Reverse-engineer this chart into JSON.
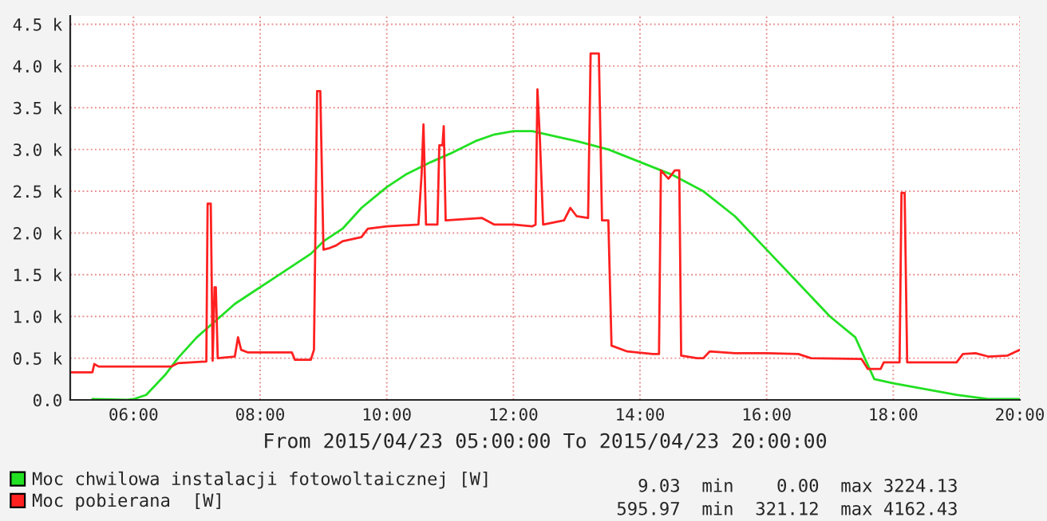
{
  "chart_data": {
    "type": "line",
    "xlabel": "From 2015/04/23 05:00:00 To 2015/04/23 20:00:00",
    "xlim": [
      5,
      20
    ],
    "xticks": [
      {
        "value": 6,
        "label": "06:00"
      },
      {
        "value": 8,
        "label": "08:00"
      },
      {
        "value": 10,
        "label": "10:00"
      },
      {
        "value": 12,
        "label": "12:00"
      },
      {
        "value": 14,
        "label": "14:00"
      },
      {
        "value": 16,
        "label": "16:00"
      },
      {
        "value": 18,
        "label": "18:00"
      },
      {
        "value": 20,
        "label": "20:00"
      }
    ],
    "ylim": [
      0,
      4600
    ],
    "yticks": [
      {
        "value": 0,
        "label": "0.0"
      },
      {
        "value": 500,
        "label": "0.5 k"
      },
      {
        "value": 1000,
        "label": "1.0 k"
      },
      {
        "value": 1500,
        "label": "1.5 k"
      },
      {
        "value": 2000,
        "label": "2.0 k"
      },
      {
        "value": 2500,
        "label": "2.5 k"
      },
      {
        "value": 3000,
        "label": "3.0 k"
      },
      {
        "value": 3500,
        "label": "3.5 k"
      },
      {
        "value": 4000,
        "label": "4.0 k"
      },
      {
        "value": 4500,
        "label": "4.5 k"
      }
    ],
    "grid": true,
    "legend": "bottom",
    "series": [
      {
        "name": "Moc chwilowa instalacji fotowoltaicznej [W]",
        "color": "#22e022",
        "x": [
          5.35,
          5.9,
          6.0,
          6.2,
          6.5,
          6.7,
          7.0,
          7.3,
          7.6,
          7.9,
          8.2,
          8.5,
          8.8,
          9.0,
          9.3,
          9.6,
          10.0,
          10.3,
          10.7,
          11.0,
          11.4,
          11.7,
          12.0,
          12.3,
          12.7,
          13.0,
          13.5,
          14.0,
          14.5,
          15.0,
          15.5,
          16.0,
          16.5,
          17.0,
          17.4,
          17.55,
          17.7,
          18.0,
          18.5,
          19.0,
          19.5,
          20.0
        ],
        "values": [
          10,
          0,
          10,
          60,
          300,
          500,
          750,
          950,
          1150,
          1300,
          1450,
          1600,
          1750,
          1900,
          2050,
          2300,
          2550,
          2700,
          2850,
          2950,
          3100,
          3180,
          3220,
          3220,
          3150,
          3100,
          3000,
          2850,
          2700,
          2500,
          2200,
          1800,
          1400,
          1000,
          750,
          500,
          250,
          200,
          130,
          60,
          10,
          10
        ]
      },
      {
        "name": "Moc pobierana  [W]",
        "color": "#ff2020",
        "x": [
          5.0,
          5.35,
          5.38,
          5.45,
          6.6,
          6.7,
          7.15,
          7.17,
          7.22,
          7.25,
          7.28,
          7.3,
          7.33,
          7.6,
          7.65,
          7.7,
          7.8,
          8.5,
          8.55,
          8.8,
          8.85,
          8.9,
          8.95,
          9.0,
          9.1,
          9.2,
          9.3,
          9.6,
          9.7,
          10.0,
          10.5,
          10.55,
          10.58,
          10.62,
          10.8,
          10.83,
          10.88,
          10.9,
          10.93,
          11.5,
          11.7,
          12.0,
          12.3,
          12.35,
          12.38,
          12.42,
          12.47,
          12.8,
          12.9,
          13.0,
          13.18,
          13.22,
          13.35,
          13.4,
          13.5,
          13.55,
          13.8,
          14.2,
          14.3,
          14.33,
          14.45,
          14.55,
          14.62,
          14.65,
          14.9,
          15.0,
          15.1,
          15.5,
          16.0,
          16.5,
          16.7,
          17.5,
          17.6,
          17.8,
          17.85,
          18.1,
          18.13,
          18.18,
          18.22,
          19.0,
          19.1,
          19.3,
          19.5,
          19.8,
          20.0
        ],
        "values": [
          330,
          330,
          430,
          400,
          400,
          440,
          460,
          2350,
          2350,
          470,
          1350,
          1350,
          500,
          520,
          750,
          600,
          570,
          570,
          480,
          480,
          600,
          3700,
          3700,
          1800,
          1820,
          1850,
          1900,
          1950,
          2050,
          2080,
          2100,
          2700,
          3300,
          2100,
          2100,
          3050,
          3050,
          3280,
          2150,
          2180,
          2100,
          2100,
          2080,
          2100,
          3720,
          3100,
          2100,
          2150,
          2300,
          2200,
          2180,
          4150,
          4150,
          2150,
          2150,
          650,
          580,
          550,
          550,
          2750,
          2650,
          2750,
          2750,
          530,
          500,
          500,
          580,
          560,
          560,
          550,
          500,
          490,
          370,
          370,
          450,
          450,
          2480,
          2480,
          450,
          450,
          550,
          560,
          520,
          530,
          600
        ]
      }
    ],
    "annotations": [
      "9.03  min    0.00  max 3224.13",
      "595.97  min  321.12  max 4162.43"
    ]
  }
}
